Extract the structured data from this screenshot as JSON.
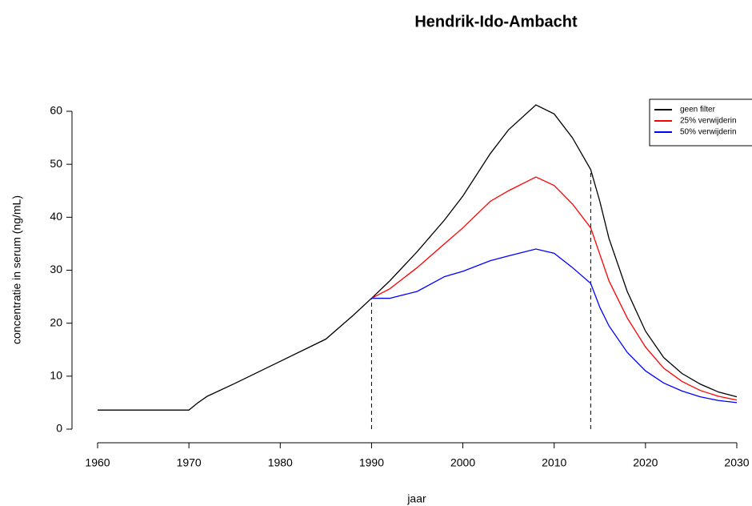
{
  "chart_data": {
    "type": "line",
    "title": "Hendrik-Ido-Ambacht",
    "xlabel": "jaar",
    "ylabel": "concentratie in serum (ng/mL)",
    "x": [
      1960,
      1970,
      1971,
      1972,
      1975,
      1980,
      1985,
      1988,
      1990,
      1992,
      1995,
      1998,
      2000,
      2003,
      2005,
      2008,
      2010,
      2012,
      2014,
      2015,
      2016,
      2018,
      2020,
      2022,
      2024,
      2026,
      2028,
      2030
    ],
    "series": [
      {
        "name": "geen filter",
        "color": "#000000",
        "values": [
          3.6,
          3.6,
          5,
          6.2,
          8.6,
          12.8,
          17,
          21.5,
          24.7,
          28,
          33.5,
          39.5,
          44,
          52,
          56.5,
          61.2,
          59.5,
          55,
          49,
          43,
          36,
          26,
          18.5,
          13.5,
          10.5,
          8.5,
          7,
          6.1
        ]
      },
      {
        "name": "25% verwijderin",
        "color": "#ff0000",
        "values": [
          null,
          null,
          null,
          null,
          null,
          null,
          null,
          null,
          24.7,
          26.5,
          30.5,
          35,
          38,
          43,
          45,
          47.6,
          46,
          42.5,
          38,
          33,
          28,
          21,
          15.5,
          11.5,
          9,
          7.3,
          6.2,
          5.5
        ]
      },
      {
        "name": "50% verwijderin",
        "color": "#0000ff",
        "values": [
          null,
          null,
          null,
          null,
          null,
          null,
          null,
          null,
          24.7,
          24.7,
          26,
          28.8,
          29.8,
          31.8,
          32.7,
          34,
          33.2,
          30.5,
          27.5,
          23,
          19.5,
          14.5,
          11,
          8.7,
          7.2,
          6.1,
          5.4,
          5.0
        ]
      }
    ],
    "vlines": [
      1990,
      2014
    ],
    "xlim": [
      1960,
      2030
    ],
    "xticks": [
      1960,
      1970,
      1980,
      1990,
      2000,
      2010,
      2020,
      2030
    ],
    "ylim": [
      0,
      60
    ],
    "yticks": [
      0,
      10,
      20,
      30,
      40,
      50,
      60
    ],
    "grid": false,
    "legend": "top-right"
  }
}
